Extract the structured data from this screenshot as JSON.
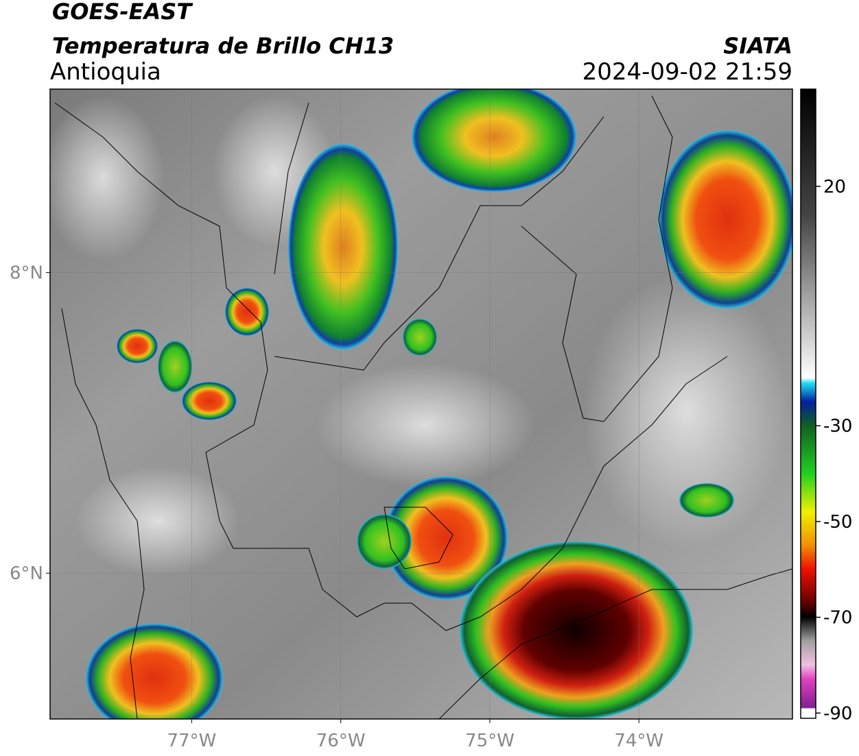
{
  "header": {
    "satellite": "GOES-EAST",
    "product": "Temperatura de Brillo CH13",
    "region": "Antioquia",
    "source": "SIATA",
    "datetime": "2024-09-02 21:59"
  },
  "map": {
    "xlim": [
      -77.95,
      -72.97
    ],
    "ylim": [
      5.03,
      9.22
    ],
    "lat_ticks": [
      {
        "value": 8,
        "label": "8°N"
      },
      {
        "value": 6,
        "label": "6°N"
      }
    ],
    "lon_ticks": [
      {
        "value": -77,
        "label": "77°W"
      },
      {
        "value": -76,
        "label": "76°W"
      },
      {
        "value": -75,
        "label": "75°W"
      },
      {
        "value": -74,
        "label": "74°W"
      }
    ],
    "grid": true
  },
  "colorbar": {
    "lim": [
      -91.1,
      40.3
    ],
    "ticks": [
      20,
      -30,
      -50,
      -70,
      -90
    ]
  }
}
